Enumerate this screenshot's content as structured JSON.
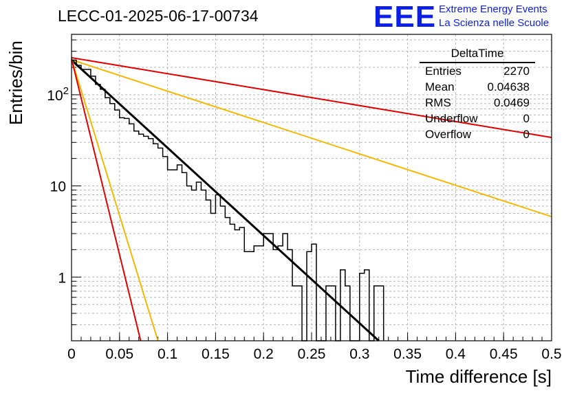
{
  "header": {
    "title": "LECC-01-2025-06-17-00734",
    "logo_text": "EEE",
    "logo_line1": "Extreme Energy Events",
    "logo_line2": "La Scienza nelle Scuole"
  },
  "colors": {
    "histogram": "#000000",
    "fit": "#000000",
    "red_curves": "#e00000",
    "yellow_curves": "#f5b800",
    "logo": "#0b1fe6"
  },
  "stats_box": {
    "name": "DeltaTime",
    "rows": [
      {
        "label": "Entries",
        "value": "2270"
      },
      {
        "label": "Mean",
        "value": "0.04638"
      },
      {
        "label": "RMS",
        "value": "0.0469"
      },
      {
        "label": "Underflow",
        "value": "0"
      },
      {
        "label": "Overflow",
        "value": "0"
      }
    ]
  },
  "chart_data": {
    "type": "line",
    "title": "LECC-01-2025-06-17-00734",
    "xlabel": "Time difference [s]",
    "ylabel": "Entries/bin",
    "xlim": [
      0,
      0.5
    ],
    "ylim": [
      0.2,
      460
    ],
    "y_scale": "log",
    "grid": true,
    "x_ticks": [
      "0",
      "0.05",
      "0.1",
      "0.15",
      "0.2",
      "0.25",
      "0.3",
      "0.35",
      "0.4",
      "0.45",
      "0.5"
    ],
    "y_tick_labels": [
      {
        "value": 1,
        "label": "1"
      },
      {
        "value": 10,
        "label": "10"
      },
      {
        "value": 100,
        "label": "10^2"
      }
    ],
    "histogram": {
      "bin_width": 0.005,
      "x_start": 0,
      "values": [
        240,
        210,
        190,
        190,
        160,
        130,
        115,
        93,
        80,
        68,
        56,
        55,
        48,
        40,
        37,
        35,
        33,
        29,
        26,
        21,
        15,
        15,
        17,
        14,
        10,
        9,
        11,
        9,
        7,
        5,
        8,
        6,
        4.5,
        3.8,
        3.3,
        3.5,
        1.9,
        1.9,
        2.2,
        2.2,
        3,
        3,
        2,
        2.2,
        3,
        2,
        0.8,
        0.8,
        0.2,
        1.9,
        2.3,
        0.2,
        0.2,
        0.8,
        0.8,
        0.2,
        1.2,
        0.8,
        0.2,
        0.2,
        1.1,
        1.2,
        0.2,
        0.8,
        0.8
      ]
    },
    "curves": [
      {
        "color": "red",
        "x": [
          0,
          0.5
        ],
        "y": [
          255,
          34
        ]
      },
      {
        "color": "yellow",
        "x": [
          0,
          0.5
        ],
        "y": [
          242,
          4.6
        ]
      },
      {
        "color": "black",
        "x": [
          0,
          0.32
        ],
        "y": [
          240,
          0.2
        ]
      },
      {
        "color": "yellow",
        "x": [
          0,
          0.09
        ],
        "y": [
          248,
          0.2
        ]
      },
      {
        "color": "red",
        "x": [
          0,
          0.072
        ],
        "y": [
          248,
          0.2
        ]
      }
    ]
  }
}
